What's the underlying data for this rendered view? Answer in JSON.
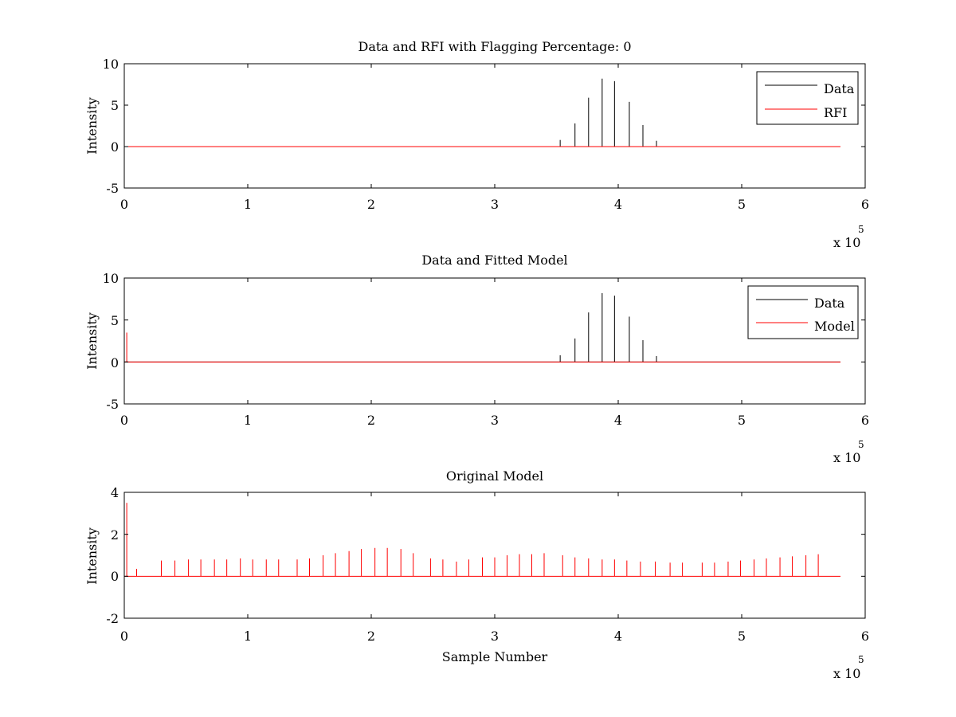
{
  "chart_data": [
    {
      "type": "line",
      "title": "Data and RFI with Flagging Percentage: 0",
      "xlabel": "",
      "ylabel": "Intensity",
      "xlim": [
        0,
        6
      ],
      "ylim": [
        -5,
        10
      ],
      "xticks": [
        "0",
        "1",
        "2",
        "3",
        "4",
        "5",
        "6"
      ],
      "yticks": [
        "-5",
        "0",
        "5",
        "10"
      ],
      "x_multiplier": "x 10",
      "x_multiplier_exp": "5",
      "legend": {
        "location": "top-right",
        "entries": [
          "Data",
          "RFI"
        ]
      },
      "series": [
        {
          "name": "Data",
          "color": "#000000",
          "baseline": 0,
          "x_range": [
            0,
            5.8
          ],
          "spikes": [
            {
              "x": 3.53,
              "y": 0.8
            },
            {
              "x": 3.65,
              "y": 2.8
            },
            {
              "x": 3.76,
              "y": 5.9
            },
            {
              "x": 3.87,
              "y": 8.2
            },
            {
              "x": 3.97,
              "y": 7.9
            },
            {
              "x": 4.09,
              "y": 5.4
            },
            {
              "x": 4.2,
              "y": 2.6
            },
            {
              "x": 4.31,
              "y": 0.7
            }
          ]
        },
        {
          "name": "RFI",
          "color": "#ff0000",
          "baseline": 0,
          "x_range": [
            0,
            5.8
          ],
          "spikes": []
        }
      ]
    },
    {
      "type": "line",
      "title": "Data and Fitted Model",
      "xlabel": "",
      "ylabel": "Intensity",
      "xlim": [
        0,
        6
      ],
      "ylim": [
        -5,
        10
      ],
      "xticks": [
        "0",
        "1",
        "2",
        "3",
        "4",
        "5",
        "6"
      ],
      "yticks": [
        "-5",
        "0",
        "5",
        "10"
      ],
      "x_multiplier": "x 10",
      "x_multiplier_exp": "5",
      "legend": {
        "location": "top-right",
        "entries": [
          "Data",
          "Model"
        ]
      },
      "series": [
        {
          "name": "Data",
          "color": "#000000",
          "baseline": 0,
          "x_range": [
            0,
            5.8
          ],
          "spikes": [
            {
              "x": 3.53,
              "y": 0.8
            },
            {
              "x": 3.65,
              "y": 2.8
            },
            {
              "x": 3.76,
              "y": 5.9
            },
            {
              "x": 3.87,
              "y": 8.2
            },
            {
              "x": 3.97,
              "y": 7.9
            },
            {
              "x": 4.09,
              "y": 5.4
            },
            {
              "x": 4.2,
              "y": 2.6
            },
            {
              "x": 4.31,
              "y": 0.7
            }
          ]
        },
        {
          "name": "Model",
          "color": "#ff0000",
          "baseline": 0,
          "x_range": [
            0,
            5.8
          ],
          "spikes": [
            {
              "x": 0.02,
              "y": 3.5
            }
          ]
        }
      ]
    },
    {
      "type": "line",
      "title": "Original Model",
      "xlabel": "Sample Number",
      "ylabel": "Intensity",
      "xlim": [
        0,
        6
      ],
      "ylim": [
        -2,
        4
      ],
      "xticks": [
        "0",
        "1",
        "2",
        "3",
        "4",
        "5",
        "6"
      ],
      "yticks": [
        "-2",
        "0",
        "2",
        "4"
      ],
      "x_multiplier": "x 10",
      "x_multiplier_exp": "5",
      "legend": null,
      "series": [
        {
          "name": "Model",
          "color": "#ff0000",
          "baseline": 0,
          "x_range": [
            0,
            5.8
          ],
          "spikes": [
            {
              "x": 0.02,
              "y": 3.5
            },
            {
              "x": 0.1,
              "y": 0.35
            },
            {
              "x": 0.3,
              "y": 0.75
            },
            {
              "x": 0.41,
              "y": 0.75
            },
            {
              "x": 0.52,
              "y": 0.8
            },
            {
              "x": 0.62,
              "y": 0.8
            },
            {
              "x": 0.73,
              "y": 0.8
            },
            {
              "x": 0.83,
              "y": 0.8
            },
            {
              "x": 0.94,
              "y": 0.85
            },
            {
              "x": 1.04,
              "y": 0.8
            },
            {
              "x": 1.15,
              "y": 0.8
            },
            {
              "x": 1.25,
              "y": 0.8
            },
            {
              "x": 1.4,
              "y": 0.8
            },
            {
              "x": 1.5,
              "y": 0.85
            },
            {
              "x": 1.61,
              "y": 1.0
            },
            {
              "x": 1.71,
              "y": 1.1
            },
            {
              "x": 1.82,
              "y": 1.2
            },
            {
              "x": 1.92,
              "y": 1.3
            },
            {
              "x": 2.03,
              "y": 1.35
            },
            {
              "x": 2.13,
              "y": 1.35
            },
            {
              "x": 2.24,
              "y": 1.3
            },
            {
              "x": 2.34,
              "y": 1.1
            },
            {
              "x": 2.48,
              "y": 0.85
            },
            {
              "x": 2.58,
              "y": 0.8
            },
            {
              "x": 2.69,
              "y": 0.7
            },
            {
              "x": 2.79,
              "y": 0.8
            },
            {
              "x": 2.9,
              "y": 0.9
            },
            {
              "x": 3.0,
              "y": 0.9
            },
            {
              "x": 3.1,
              "y": 1.0
            },
            {
              "x": 3.2,
              "y": 1.05
            },
            {
              "x": 3.3,
              "y": 1.05
            },
            {
              "x": 3.4,
              "y": 1.1
            },
            {
              "x": 3.55,
              "y": 1.0
            },
            {
              "x": 3.65,
              "y": 0.9
            },
            {
              "x": 3.76,
              "y": 0.85
            },
            {
              "x": 3.87,
              "y": 0.8
            },
            {
              "x": 3.97,
              "y": 0.8
            },
            {
              "x": 4.07,
              "y": 0.75
            },
            {
              "x": 4.18,
              "y": 0.7
            },
            {
              "x": 4.3,
              "y": 0.7
            },
            {
              "x": 4.42,
              "y": 0.65
            },
            {
              "x": 4.52,
              "y": 0.65
            },
            {
              "x": 4.68,
              "y": 0.65
            },
            {
              "x": 4.78,
              "y": 0.65
            },
            {
              "x": 4.89,
              "y": 0.7
            },
            {
              "x": 4.99,
              "y": 0.75
            },
            {
              "x": 5.1,
              "y": 0.8
            },
            {
              "x": 5.2,
              "y": 0.85
            },
            {
              "x": 5.31,
              "y": 0.9
            },
            {
              "x": 5.41,
              "y": 0.95
            },
            {
              "x": 5.52,
              "y": 1.0
            },
            {
              "x": 5.62,
              "y": 1.05
            }
          ]
        }
      ]
    }
  ]
}
